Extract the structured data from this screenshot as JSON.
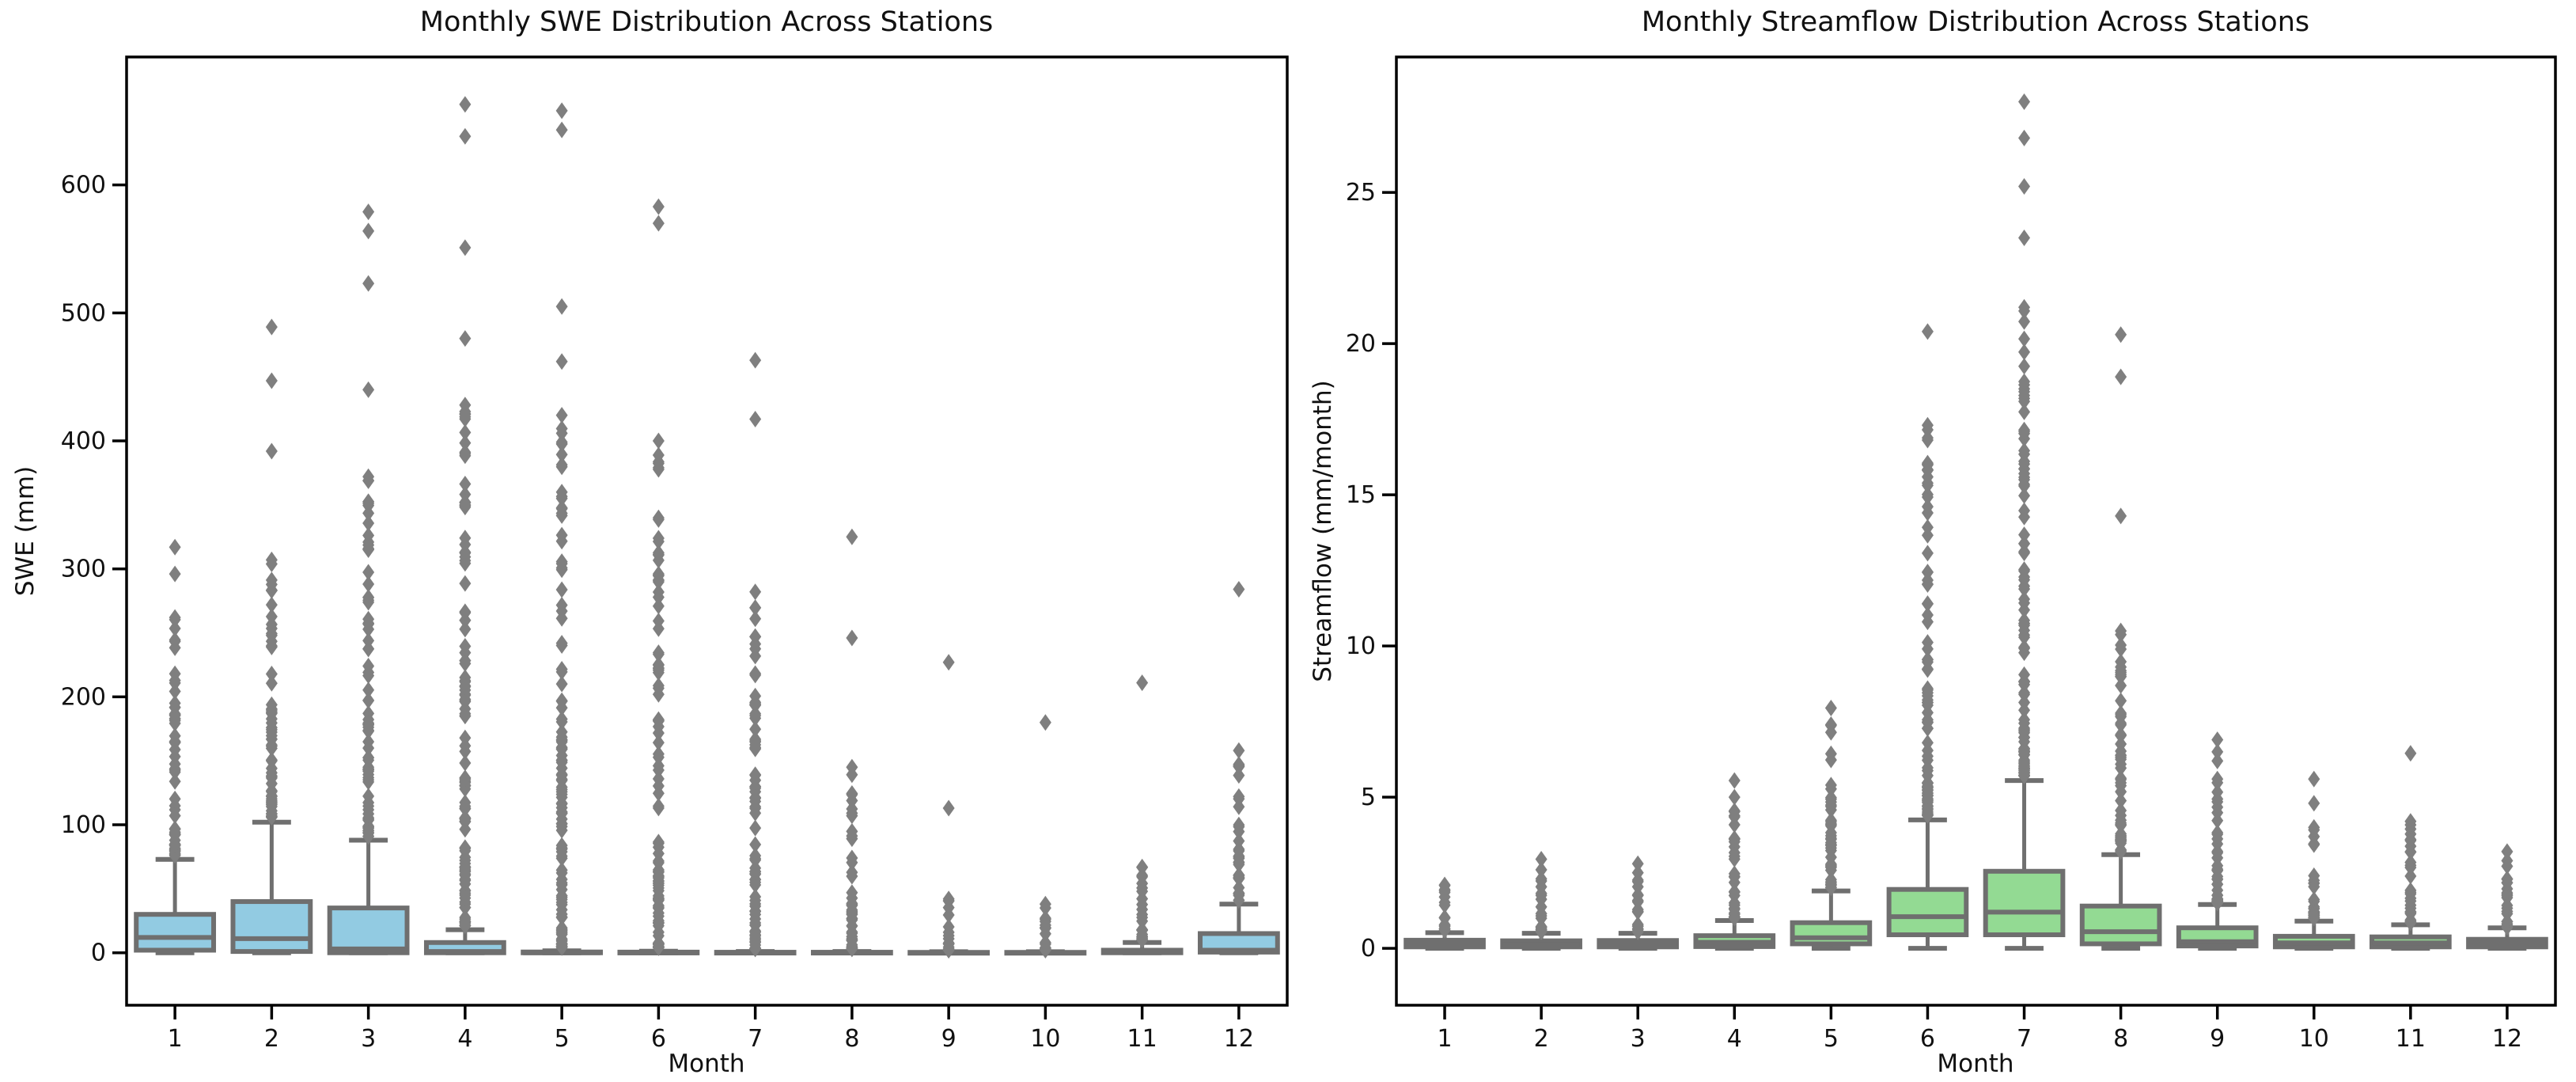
{
  "figure": {
    "background": "#ffffff",
    "spine_color": "#000000",
    "text_color": "#111111",
    "line_color": "#6f6f6f",
    "flier_color": "#7f7f7f"
  },
  "chart_data": [
    {
      "type": "boxplot",
      "title": "Monthly SWE Distribution Across Stations",
      "xlabel": "Month",
      "ylabel": "SWE (mm)",
      "categories": [
        "1",
        "2",
        "3",
        "4",
        "5",
        "6",
        "7",
        "8",
        "9",
        "10",
        "11",
        "12"
      ],
      "yticks": [
        0,
        100,
        200,
        300,
        400,
        500,
        600
      ],
      "ylim": [
        -41,
        700
      ],
      "box_fill": "#92cbe2",
      "legend": "none",
      "grid": false,
      "boxes": [
        {
          "month": 1,
          "q1": 2,
          "median": 12,
          "q3": 30,
          "whisker_low": 0,
          "whisker_high": 73,
          "dense_outliers": {
            "min": 76,
            "max": 262,
            "count": 55
          },
          "outliers": [
            296,
            317
          ]
        },
        {
          "month": 2,
          "q1": 1,
          "median": 11,
          "q3": 40,
          "whisker_low": 0,
          "whisker_high": 102,
          "dense_outliers": {
            "min": 106,
            "max": 307,
            "count": 60
          },
          "outliers": [
            392,
            447,
            489
          ]
        },
        {
          "month": 3,
          "q1": 0,
          "median": 3,
          "q3": 35,
          "whisker_low": 0,
          "whisker_high": 88,
          "dense_outliers": {
            "min": 91,
            "max": 372,
            "count": 75
          },
          "outliers": [
            440,
            523,
            564,
            579
          ]
        },
        {
          "month": 4,
          "q1": 0,
          "median": 1,
          "q3": 8,
          "whisker_low": 0,
          "whisker_high": 18,
          "dense_outliers": {
            "min": 21,
            "max": 428,
            "count": 110
          },
          "outliers": [
            480,
            551,
            638,
            663
          ]
        },
        {
          "month": 5,
          "q1": 0,
          "median": 0,
          "q3": 0.6,
          "whisker_low": 0,
          "whisker_high": 1.5,
          "dense_outliers": {
            "min": 4,
            "max": 420,
            "count": 110
          },
          "outliers": [
            462,
            505,
            643,
            658
          ]
        },
        {
          "month": 6,
          "q1": 0,
          "median": 0,
          "q3": 0.5,
          "whisker_low": 0,
          "whisker_high": 1.2,
          "dense_outliers": {
            "min": 4,
            "max": 400,
            "count": 100
          },
          "outliers": [
            570,
            583
          ]
        },
        {
          "month": 7,
          "q1": 0,
          "median": 0,
          "q3": 0.4,
          "whisker_low": 0,
          "whisker_high": 1,
          "dense_outliers": {
            "min": 3,
            "max": 282,
            "count": 80
          },
          "outliers": [
            417,
            463
          ]
        },
        {
          "month": 8,
          "q1": 0,
          "median": 0,
          "q3": 0.4,
          "whisker_low": 0,
          "whisker_high": 1,
          "dense_outliers": {
            "min": 3,
            "max": 145,
            "count": 45
          },
          "outliers": [
            246,
            325
          ]
        },
        {
          "month": 9,
          "q1": 0,
          "median": 0,
          "q3": 0.3,
          "whisker_low": 0,
          "whisker_high": 0.8,
          "dense_outliers": {
            "min": 2,
            "max": 42,
            "count": 18
          },
          "outliers": [
            113,
            227
          ]
        },
        {
          "month": 10,
          "q1": 0,
          "median": 0,
          "q3": 0.3,
          "whisker_low": 0,
          "whisker_high": 0.8,
          "dense_outliers": {
            "min": 2,
            "max": 38,
            "count": 16
          },
          "outliers": [
            180
          ]
        },
        {
          "month": 11,
          "q1": 0,
          "median": 0.5,
          "q3": 2,
          "whisker_low": 0,
          "whisker_high": 8,
          "dense_outliers": {
            "min": 10,
            "max": 67,
            "count": 25
          },
          "outliers": [
            211
          ]
        },
        {
          "month": 12,
          "q1": 0.5,
          "median": 2,
          "q3": 15,
          "whisker_low": 0,
          "whisker_high": 38,
          "dense_outliers": {
            "min": 41,
            "max": 158,
            "count": 35
          },
          "outliers": [
            284
          ]
        }
      ]
    },
    {
      "type": "boxplot",
      "title": "Monthly Streamflow Distribution Across Stations",
      "xlabel": "Month",
      "ylabel": "Streamflow (mm/month)",
      "categories": [
        "1",
        "2",
        "3",
        "4",
        "5",
        "6",
        "7",
        "8",
        "9",
        "10",
        "11",
        "12"
      ],
      "yticks": [
        0,
        5,
        10,
        15,
        20,
        25
      ],
      "ylim": [
        -1.88,
        29.48
      ],
      "box_fill": "#93da93",
      "legend": "none",
      "grid": false,
      "boxes": [
        {
          "month": 1,
          "q1": 0.05,
          "median": 0.15,
          "q3": 0.27,
          "whisker_low": 0,
          "whisker_high": 0.52,
          "dense_outliers": {
            "min": 0.6,
            "max": 2.1,
            "count": 18
          },
          "outliers": []
        },
        {
          "month": 2,
          "q1": 0.05,
          "median": 0.13,
          "q3": 0.25,
          "whisker_low": 0,
          "whisker_high": 0.5,
          "dense_outliers": {
            "min": 0.55,
            "max": 2.3,
            "count": 20
          },
          "outliers": [
            2.6,
            2.95
          ]
        },
        {
          "month": 3,
          "q1": 0.05,
          "median": 0.14,
          "q3": 0.26,
          "whisker_low": 0,
          "whisker_high": 0.5,
          "dense_outliers": {
            "min": 0.55,
            "max": 2.5,
            "count": 20
          },
          "outliers": [
            2.8
          ]
        },
        {
          "month": 4,
          "q1": 0.06,
          "median": 0.2,
          "q3": 0.42,
          "whisker_low": 0,
          "whisker_high": 0.92,
          "dense_outliers": {
            "min": 1.0,
            "max": 4.55,
            "count": 32
          },
          "outliers": [
            5.0,
            5.55
          ]
        },
        {
          "month": 5,
          "q1": 0.15,
          "median": 0.35,
          "q3": 0.85,
          "whisker_low": 0,
          "whisker_high": 1.9,
          "dense_outliers": {
            "min": 2.0,
            "max": 7.4,
            "count": 42
          },
          "outliers": [
            7.95
          ]
        },
        {
          "month": 6,
          "q1": 0.45,
          "median": 1.05,
          "q3": 1.95,
          "whisker_low": 0,
          "whisker_high": 4.25,
          "dense_outliers": {
            "min": 4.4,
            "max": 17.3,
            "count": 85
          },
          "outliers": [
            20.4
          ]
        },
        {
          "month": 7,
          "q1": 0.45,
          "median": 1.2,
          "q3": 2.55,
          "whisker_low": 0,
          "whisker_high": 5.55,
          "dense_outliers": {
            "min": 5.7,
            "max": 21.2,
            "count": 100
          },
          "outliers": [
            23.5,
            25.2,
            26.8,
            28.0
          ]
        },
        {
          "month": 8,
          "q1": 0.15,
          "median": 0.55,
          "q3": 1.4,
          "whisker_low": 0,
          "whisker_high": 3.1,
          "dense_outliers": {
            "min": 3.2,
            "max": 10.5,
            "count": 55
          },
          "outliers": [
            14.3,
            18.9,
            20.3
          ]
        },
        {
          "month": 9,
          "q1": 0.08,
          "median": 0.22,
          "q3": 0.68,
          "whisker_low": 0,
          "whisker_high": 1.45,
          "dense_outliers": {
            "min": 1.5,
            "max": 5.6,
            "count": 38
          },
          "outliers": [
            6.2,
            6.5,
            6.9
          ]
        },
        {
          "month": 10,
          "q1": 0.05,
          "median": 0.18,
          "q3": 0.4,
          "whisker_low": 0,
          "whisker_high": 0.9,
          "dense_outliers": {
            "min": 1.0,
            "max": 4.0,
            "count": 30
          },
          "outliers": [
            4.8,
            5.6
          ]
        },
        {
          "month": 11,
          "q1": 0.05,
          "median": 0.18,
          "q3": 0.38,
          "whisker_low": 0,
          "whisker_high": 0.78,
          "dense_outliers": {
            "min": 0.85,
            "max": 4.2,
            "count": 30
          },
          "outliers": [
            6.45
          ]
        },
        {
          "month": 12,
          "q1": 0.05,
          "median": 0.16,
          "q3": 0.3,
          "whisker_low": 0,
          "whisker_high": 0.68,
          "dense_outliers": {
            "min": 0.7,
            "max": 2.9,
            "count": 22
          },
          "outliers": [
            3.2
          ]
        }
      ]
    }
  ]
}
